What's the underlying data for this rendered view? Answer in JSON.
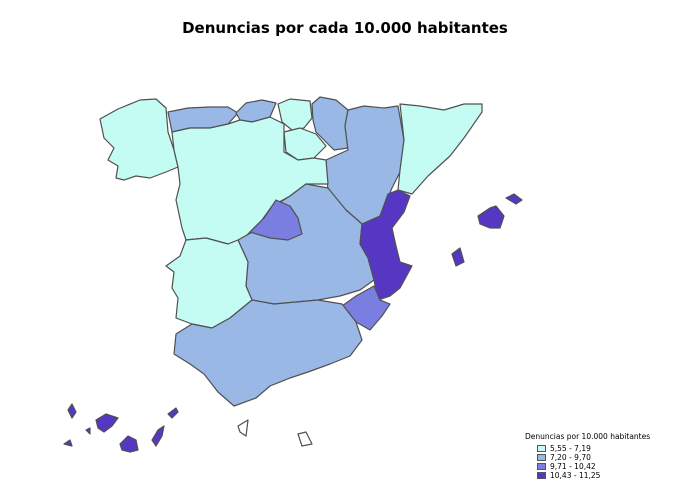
{
  "title": "Denuncias por cada 10.000 habitantes",
  "legend": {
    "title": "Denuncias por 10.000 habitantes",
    "items": [
      {
        "label": "5,55 - 7,19",
        "color": "#c4fcf4"
      },
      {
        "label": "7,20 - 9,70",
        "color": "#9ab8e6"
      },
      {
        "label": "9,71 - 10,42",
        "color": "#7a7ee0"
      },
      {
        "label": "10,43 - 11,25",
        "color": "#5637c4"
      }
    ]
  },
  "colors": {
    "c1": "#c4fcf4",
    "c2": "#9ab8e6",
    "c3": "#7a7ee0",
    "c4": "#5637c4"
  },
  "regions": [
    {
      "name": "galicia",
      "class": 1
    },
    {
      "name": "asturias",
      "class": 2
    },
    {
      "name": "cantabria",
      "class": 2
    },
    {
      "name": "pais-vasco",
      "class": 1
    },
    {
      "name": "navarra",
      "class": 2
    },
    {
      "name": "la-rioja",
      "class": 1
    },
    {
      "name": "aragon",
      "class": 2
    },
    {
      "name": "cataluna",
      "class": 1
    },
    {
      "name": "castilla-leon",
      "class": 1
    },
    {
      "name": "madrid",
      "class": 3
    },
    {
      "name": "castilla-la-mancha",
      "class": 2
    },
    {
      "name": "extremadura",
      "class": 1
    },
    {
      "name": "valencia",
      "class": 4
    },
    {
      "name": "murcia",
      "class": 3
    },
    {
      "name": "andalucia",
      "class": 2
    },
    {
      "name": "baleares",
      "class": 4
    },
    {
      "name": "canarias",
      "class": 4
    },
    {
      "name": "ceuta",
      "class": 0
    },
    {
      "name": "melilla",
      "class": 0
    }
  ]
}
